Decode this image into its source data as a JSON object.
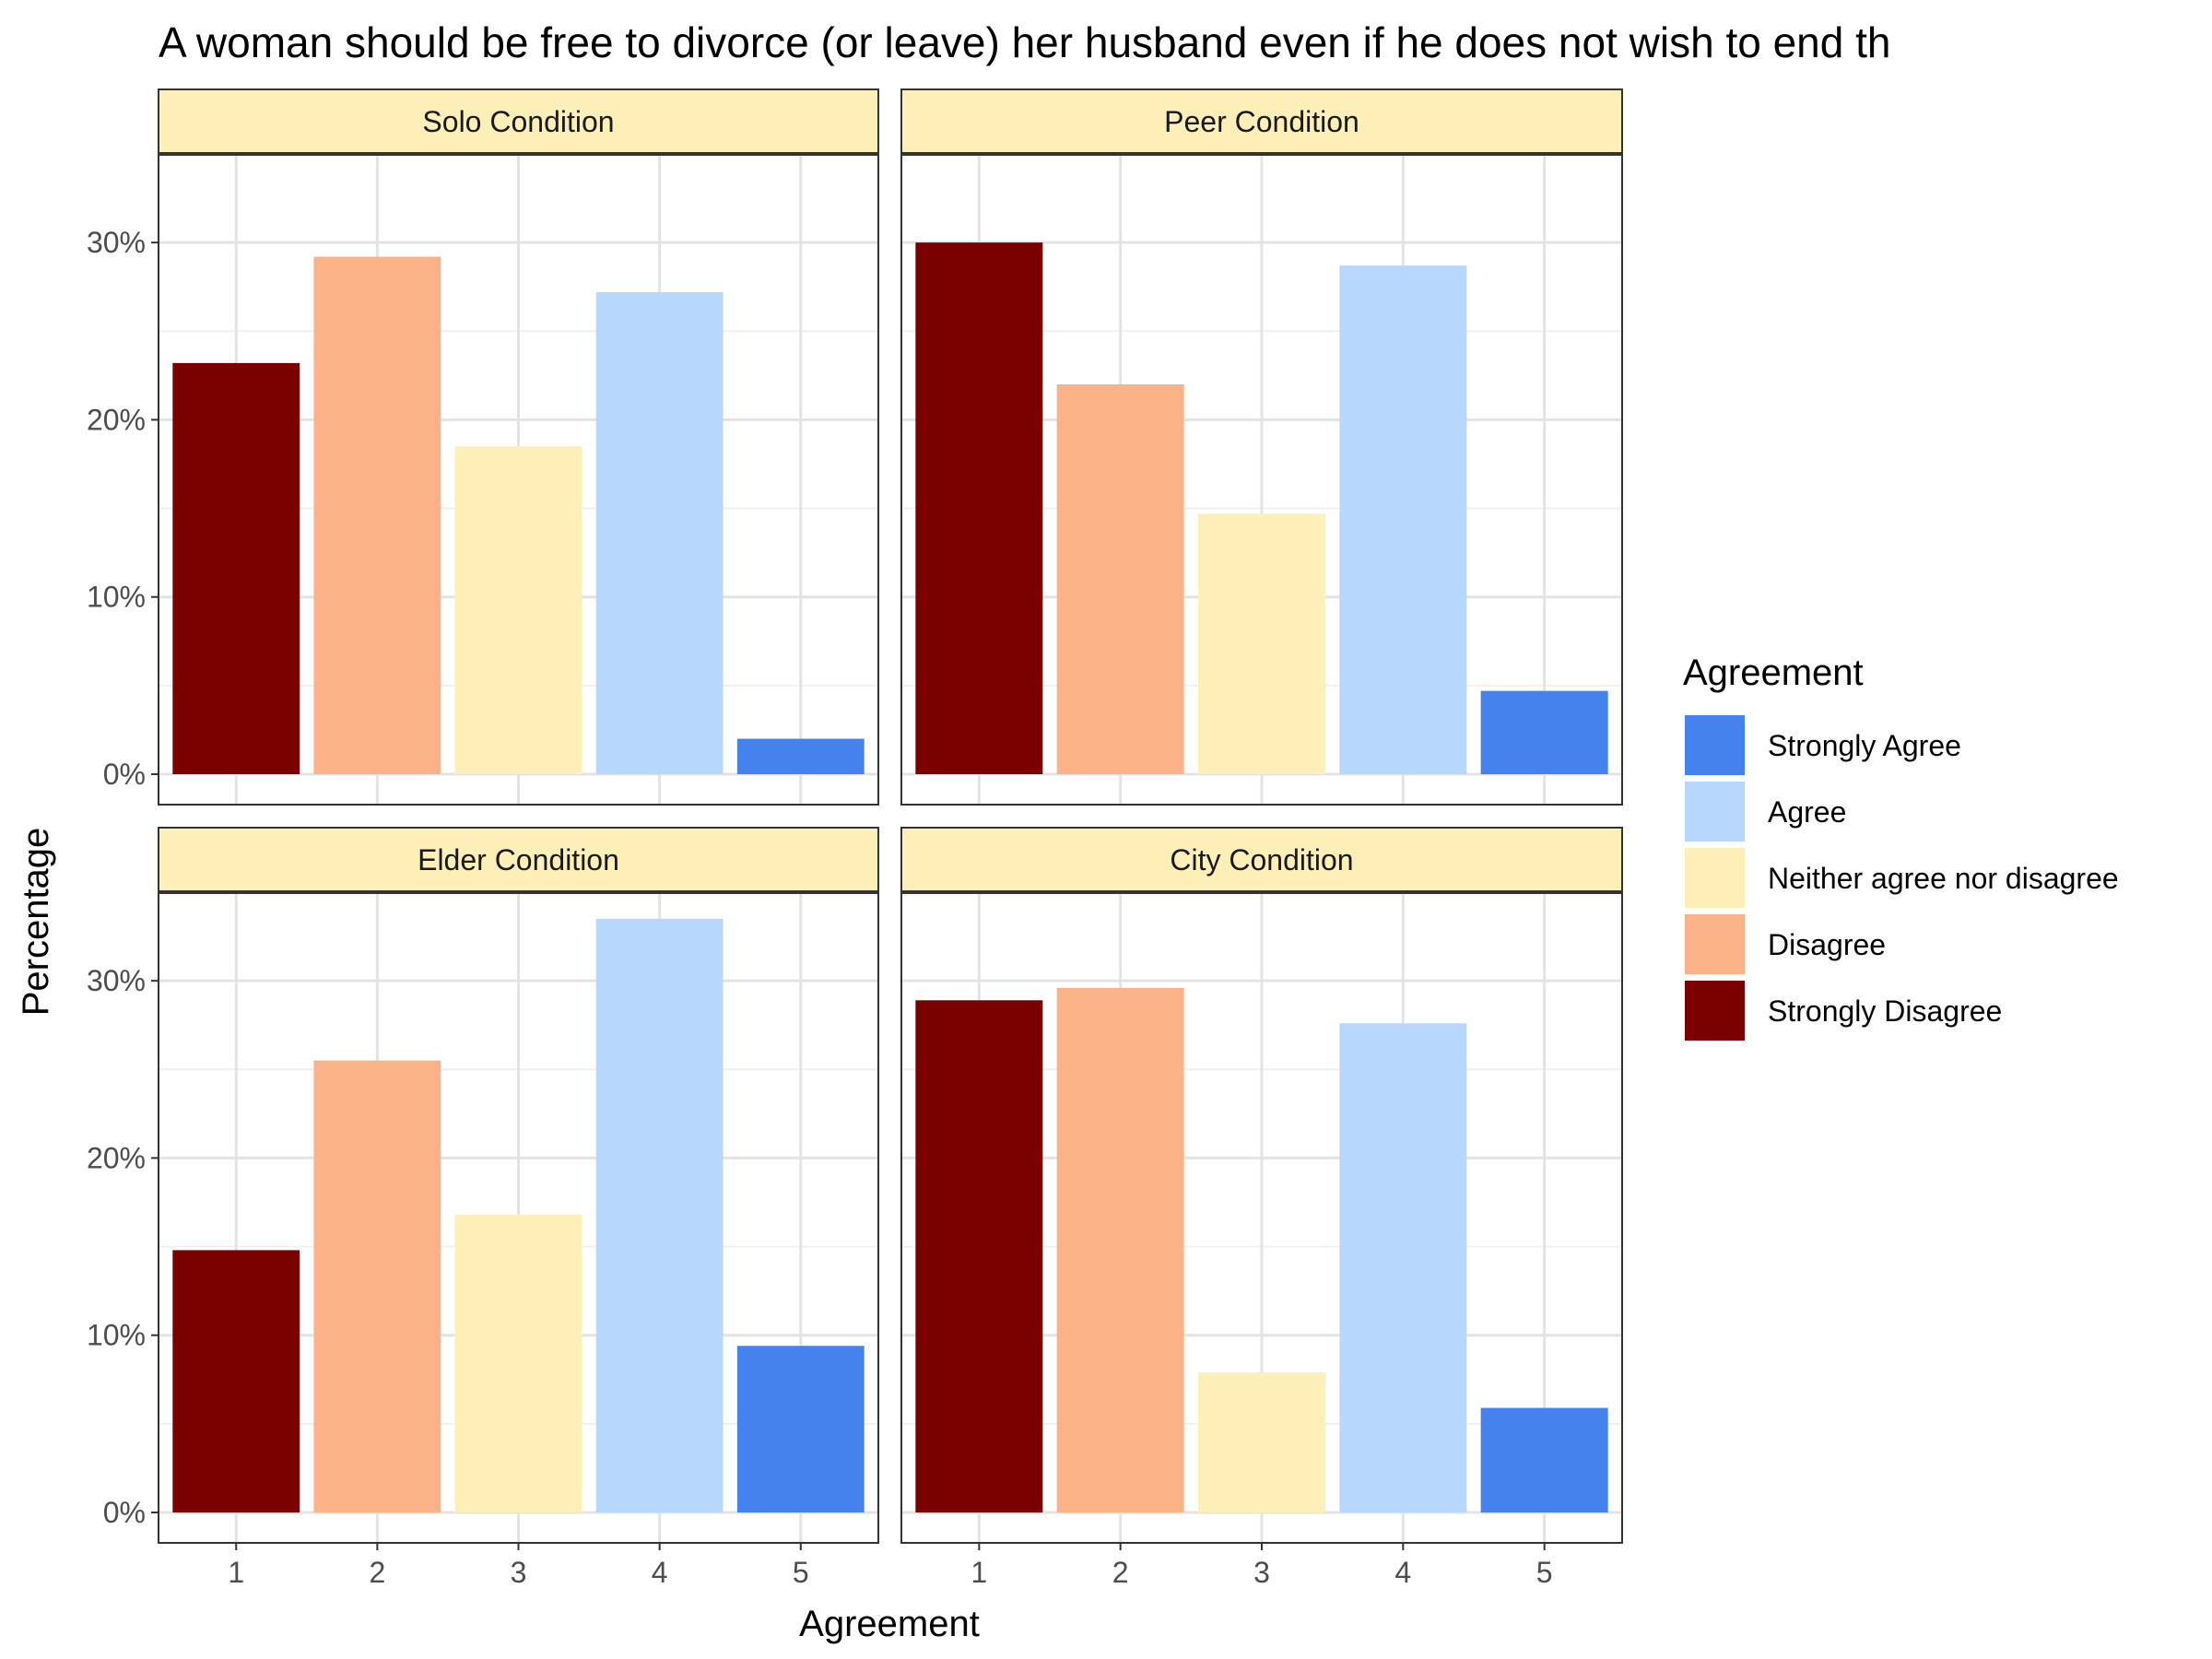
{
  "chart_data": {
    "type": "bar",
    "title": "A woman should be free to divorce (or leave) her husband even if he does not wish to end th",
    "xlabel": "Agreement",
    "ylabel": "Percentage",
    "categories": [
      "1",
      "2",
      "3",
      "4",
      "5"
    ],
    "ylim": [
      0,
      35
    ],
    "yticks": [
      "0%",
      "10%",
      "20%",
      "30%"
    ],
    "grid": true,
    "legend": {
      "title": "Agreement",
      "position": "right",
      "entries": [
        {
          "label": "Strongly Agree",
          "color": "#4682ED"
        },
        {
          "label": "Agree",
          "color": "#B8D7FD"
        },
        {
          "label": "Neither agree nor disagree",
          "color": "#FEEEB8"
        },
        {
          "label": "Disagree",
          "color": "#FCB287"
        },
        {
          "label": "Strongly Disagree",
          "color": "#7B0000"
        }
      ]
    },
    "bar_colors": [
      "#7B0000",
      "#FCB287",
      "#FEEEB8",
      "#B8D7FD",
      "#4682ED"
    ],
    "strip_color": "#FEEEB8",
    "panels": [
      {
        "name": "Solo Condition",
        "values": [
          23.2,
          29.2,
          18.5,
          27.2,
          2.0
        ]
      },
      {
        "name": "Peer Condition",
        "values": [
          30.0,
          22.0,
          14.7,
          28.7,
          4.7
        ]
      },
      {
        "name": "Elder Condition",
        "values": [
          14.8,
          25.5,
          16.8,
          33.5,
          9.4
        ]
      },
      {
        "name": "City Condition",
        "values": [
          28.9,
          29.6,
          7.9,
          27.6,
          5.9
        ]
      }
    ]
  }
}
